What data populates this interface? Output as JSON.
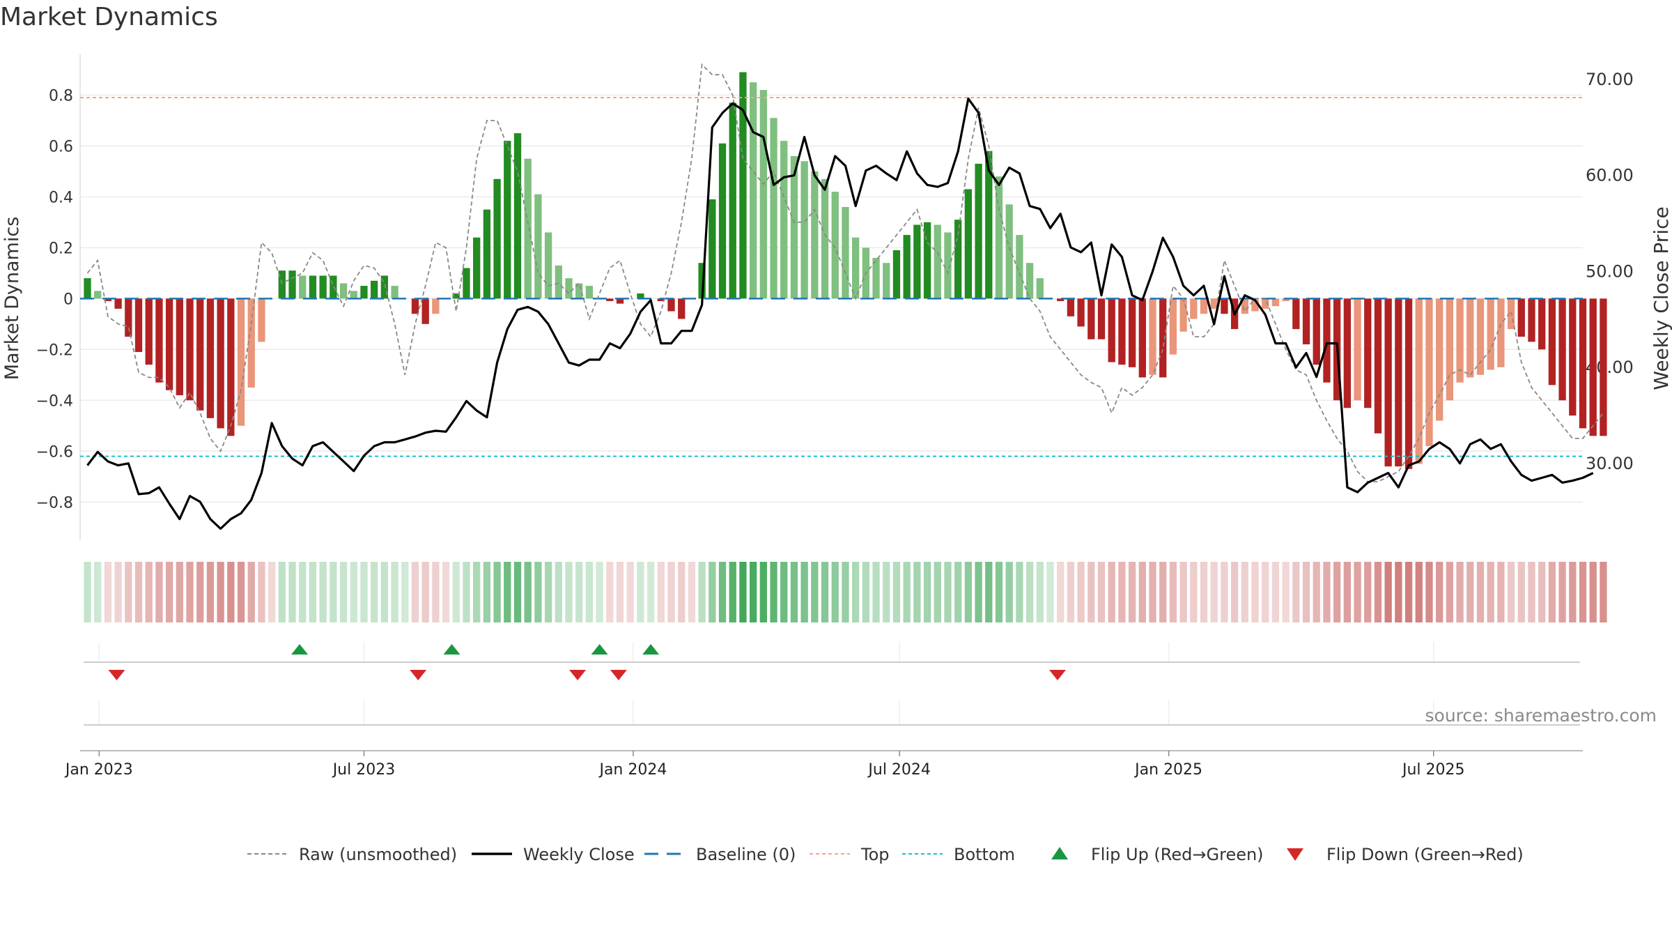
{
  "chart_data": {
    "type": "bar",
    "title": "Market Dynamics",
    "source": "source: sharemaestro.com",
    "ylabel_left": "Market Dynamics",
    "ylabel_right": "Weekly Close Price",
    "ylim_left": [
      -0.95,
      0.96
    ],
    "ylim_right": [
      22.0,
      72.6
    ],
    "yticks_left": [
      0.8,
      0.6,
      0.4,
      0.2,
      0,
      -0.2,
      -0.4,
      -0.6,
      -0.8
    ],
    "ytick_labels_left": [
      "0.8",
      "0.6",
      "0.4",
      "0.2",
      "0",
      "−0.2",
      "−0.4",
      "−0.6",
      "−0.8"
    ],
    "yticks_right": [
      70,
      60,
      50,
      40,
      30
    ],
    "ytick_labels_right": [
      "70.00",
      "60.00",
      "50.00",
      "40.00",
      "30.00"
    ],
    "x_start": "2022-12-19",
    "x_end": "2025-10-11",
    "week_start": "2022-12-24",
    "xticks": [
      {
        "date": "2023-01-01",
        "label": "Jan 2023"
      },
      {
        "date": "2023-07-01",
        "label": "Jul 2023"
      },
      {
        "date": "2024-01-01",
        "label": "Jan 2024"
      },
      {
        "date": "2024-07-01",
        "label": "Jul 2024"
      },
      {
        "date": "2025-01-01",
        "label": "Jan 2025"
      },
      {
        "date": "2025-07-01",
        "label": "Jul 2025"
      }
    ],
    "reference_lines": {
      "baseline": 0,
      "top": 0.79,
      "bottom": -0.62
    },
    "colors": {
      "green_strong": "#228b22",
      "green_light": "#7fbf7f",
      "red_strong": "#b22222",
      "red_light": "#e9967a",
      "close": "#000000",
      "raw": "#888888",
      "baseline": "#1f77b4",
      "top": "#f4a582",
      "bottom": "#17becf",
      "flip_up": "#1a9641",
      "flip_down": "#d62728"
    },
    "series": [
      {
        "name": "Market Dynamics",
        "values": [
          0.08,
          0.03,
          -0.01,
          -0.04,
          -0.15,
          -0.21,
          -0.26,
          -0.33,
          -0.36,
          -0.38,
          -0.4,
          -0.44,
          -0.47,
          -0.51,
          -0.54,
          -0.5,
          -0.35,
          -0.17,
          0,
          0.11,
          0.11,
          0.09,
          0.09,
          0.09,
          0.09,
          0.06,
          0.03,
          0.05,
          0.07,
          0.09,
          0.05,
          0,
          -0.06,
          -0.1,
          -0.06,
          0,
          0.02,
          0.12,
          0.24,
          0.35,
          0.47,
          0.62,
          0.65,
          0.55,
          0.41,
          0.26,
          0.13,
          0.08,
          0.06,
          0.05,
          0,
          -0.01,
          -0.02,
          0,
          0.02,
          0,
          -0.01,
          -0.05,
          -0.08,
          0,
          0.14,
          0.39,
          0.61,
          0.77,
          0.89,
          0.85,
          0.82,
          0.71,
          0.62,
          0.56,
          0.54,
          0.5,
          0.47,
          0.42,
          0.36,
          0.24,
          0.2,
          0.16,
          0.14,
          0.19,
          0.25,
          0.29,
          0.3,
          0.29,
          0.26,
          0.31,
          0.43,
          0.53,
          0.58,
          0.48,
          0.37,
          0.25,
          0.14,
          0.08,
          0,
          -0.01,
          -0.07,
          -0.11,
          -0.16,
          -0.16,
          -0.25,
          -0.26,
          -0.27,
          -0.31,
          -0.3,
          -0.31,
          -0.22,
          -0.13,
          -0.08,
          -0.06,
          -0.04,
          -0.06,
          -0.12,
          -0.06,
          -0.05,
          -0.04,
          -0.03,
          -0.01,
          -0.12,
          -0.18,
          -0.26,
          -0.33,
          -0.4,
          -0.43,
          -0.4,
          -0.43,
          -0.53,
          -0.66,
          -0.66,
          -0.67,
          -0.65,
          -0.58,
          -0.48,
          -0.4,
          -0.33,
          -0.31,
          -0.3,
          -0.28,
          -0.27,
          -0.12,
          -0.15,
          -0.17,
          -0.2,
          -0.34,
          -0.4,
          -0.46,
          -0.51,
          -0.54,
          -0.54
        ]
      },
      {
        "name": "Raw (unsmoothed)",
        "values": [
          0.1,
          0.15,
          -0.07,
          -0.1,
          -0.11,
          -0.29,
          -0.31,
          -0.31,
          -0.35,
          -0.43,
          -0.37,
          -0.45,
          -0.55,
          -0.6,
          -0.5,
          -0.36,
          -0.1,
          0.22,
          0.18,
          0.06,
          0.08,
          0.1,
          0.18,
          0.15,
          0.05,
          -0.03,
          0.07,
          0.13,
          0.12,
          0.06,
          -0.1,
          -0.3,
          -0.1,
          0.05,
          0.22,
          0.2,
          -0.05,
          0.2,
          0.55,
          0.7,
          0.7,
          0.6,
          0.5,
          0.3,
          0.1,
          0.05,
          0.06,
          0.02,
          0.06,
          -0.08,
          0.02,
          0.12,
          0.15,
          0.02,
          -0.1,
          -0.15,
          -0.05,
          0.1,
          0.3,
          0.55,
          0.92,
          0.88,
          0.88,
          0.8,
          0.55,
          0.5,
          0.45,
          0.5,
          0.4,
          0.3,
          0.3,
          0.35,
          0.25,
          0.2,
          0.1,
          0.0,
          0.1,
          0.15,
          0.2,
          0.25,
          0.3,
          0.35,
          0.22,
          0.18,
          0.1,
          0.25,
          0.55,
          0.75,
          0.6,
          0.35,
          0.2,
          0.1,
          0.0,
          -0.05,
          -0.15,
          -0.2,
          -0.25,
          -0.3,
          -0.33,
          -0.35,
          -0.45,
          -0.35,
          -0.38,
          -0.35,
          -0.3,
          -0.2,
          0.05,
          0.0,
          -0.15,
          -0.15,
          -0.1,
          0.15,
          0.05,
          -0.05,
          0.0,
          0.0,
          -0.1,
          -0.2,
          -0.28,
          -0.3,
          -0.4,
          -0.48,
          -0.55,
          -0.6,
          -0.68,
          -0.72,
          -0.72,
          -0.7,
          -0.68,
          -0.62,
          -0.55,
          -0.45,
          -0.38,
          -0.3,
          -0.28,
          -0.3,
          -0.25,
          -0.2,
          -0.1,
          -0.05,
          -0.25,
          -0.35,
          -0.4,
          -0.45,
          -0.5,
          -0.55,
          -0.55,
          -0.5,
          -0.45
        ]
      },
      {
        "name": "Weekly Close",
        "values": [
          29.8,
          31.2,
          30.2,
          29.8,
          30.0,
          26.8,
          26.9,
          27.5,
          25.8,
          24.2,
          26.6,
          26.0,
          24.2,
          23.2,
          24.2,
          24.8,
          26.2,
          29.0,
          34.2,
          31.8,
          30.5,
          29.8,
          31.8,
          32.2,
          31.2,
          30.2,
          29.2,
          30.8,
          31.8,
          32.2,
          32.2,
          32.5,
          32.8,
          33.2,
          33.4,
          33.3,
          34.8,
          36.5,
          35.5,
          34.8,
          40.5,
          44.0,
          46.0,
          46.3,
          45.8,
          44.5,
          42.5,
          40.5,
          40.2,
          40.8,
          40.8,
          42.5,
          42.0,
          43.5,
          45.8,
          47.0,
          42.5,
          42.5,
          43.8,
          43.8,
          46.5,
          65.0,
          66.5,
          67.5,
          66.8,
          64.5,
          64.0,
          59.0,
          59.8,
          60.0,
          64.0,
          60.0,
          58.5,
          62.0,
          61.0,
          56.8,
          60.5,
          61.0,
          60.2,
          59.5,
          62.5,
          60.2,
          59.0,
          58.8,
          59.2,
          62.5,
          68.0,
          66.5,
          60.5,
          59.0,
          60.8,
          60.2,
          56.8,
          56.5,
          54.5,
          56.0,
          52.5,
          52.0,
          53.0,
          47.5,
          52.8,
          51.5,
          47.5,
          47.0,
          50.0,
          53.5,
          51.5,
          48.5,
          47.5,
          48.5,
          44.5,
          49.5,
          45.5,
          47.5,
          47.0,
          45.5,
          42.5,
          42.5,
          40.0,
          41.5,
          39.0,
          42.5,
          42.5,
          27.5,
          27.0,
          28.0,
          28.5,
          29.0,
          27.5,
          29.8,
          30.2,
          31.5,
          32.2,
          31.5,
          30.0,
          32.0,
          32.5,
          31.5,
          32.0,
          30.2,
          28.8,
          28.2,
          28.5,
          28.8,
          28.0,
          28.2,
          28.5,
          29.0
        ]
      }
    ],
    "flips_up": [
      "2023-05-18",
      "2023-08-30",
      "2023-12-09",
      "2024-01-13"
    ],
    "flips_down": [
      "2023-01-13",
      "2023-08-07",
      "2023-11-24",
      "2023-12-22",
      "2024-10-17"
    ],
    "legend": [
      {
        "label": "Raw (unsmoothed)",
        "kind": "dash-gray"
      },
      {
        "label": "Weekly Close",
        "kind": "solid-black"
      },
      {
        "label": "Baseline (0)",
        "kind": "dash-blue"
      },
      {
        "label": "Top",
        "kind": "dot-orange"
      },
      {
        "label": "Bottom",
        "kind": "dot-cyan"
      },
      {
        "label": "Flip Up (Red→Green)",
        "kind": "tri-up"
      },
      {
        "label": "Flip Down (Green→Red)",
        "kind": "tri-down"
      }
    ],
    "legend_position": "bottom"
  }
}
